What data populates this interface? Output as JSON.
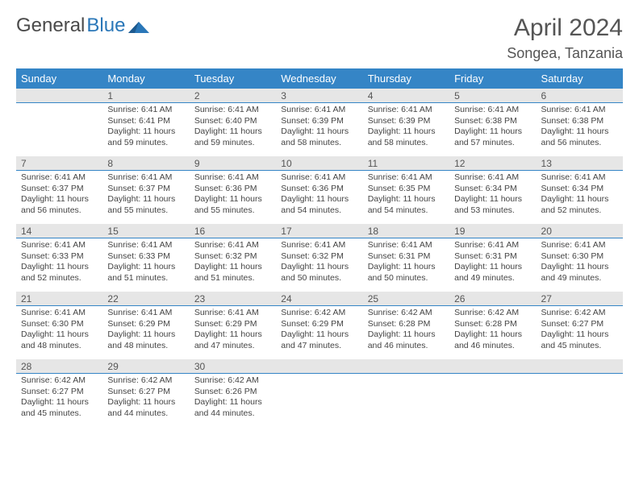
{
  "logo": {
    "text1": "General",
    "text2": "Blue"
  },
  "title": "April 2024",
  "location": "Songea, Tanzania",
  "colors": {
    "header_bg": "#3585c6",
    "header_text": "#ffffff",
    "daynum_bg": "#e6e6e6",
    "daynum_border": "#3585c6",
    "text": "#444444",
    "title_text": "#555555"
  },
  "weekdays": [
    "Sunday",
    "Monday",
    "Tuesday",
    "Wednesday",
    "Thursday",
    "Friday",
    "Saturday"
  ],
  "weeks": [
    [
      {
        "num": "",
        "lines": []
      },
      {
        "num": "1",
        "lines": [
          "Sunrise: 6:41 AM",
          "Sunset: 6:41 PM",
          "Daylight: 11 hours",
          "and 59 minutes."
        ]
      },
      {
        "num": "2",
        "lines": [
          "Sunrise: 6:41 AM",
          "Sunset: 6:40 PM",
          "Daylight: 11 hours",
          "and 59 minutes."
        ]
      },
      {
        "num": "3",
        "lines": [
          "Sunrise: 6:41 AM",
          "Sunset: 6:39 PM",
          "Daylight: 11 hours",
          "and 58 minutes."
        ]
      },
      {
        "num": "4",
        "lines": [
          "Sunrise: 6:41 AM",
          "Sunset: 6:39 PM",
          "Daylight: 11 hours",
          "and 58 minutes."
        ]
      },
      {
        "num": "5",
        "lines": [
          "Sunrise: 6:41 AM",
          "Sunset: 6:38 PM",
          "Daylight: 11 hours",
          "and 57 minutes."
        ]
      },
      {
        "num": "6",
        "lines": [
          "Sunrise: 6:41 AM",
          "Sunset: 6:38 PM",
          "Daylight: 11 hours",
          "and 56 minutes."
        ]
      }
    ],
    [
      {
        "num": "7",
        "lines": [
          "Sunrise: 6:41 AM",
          "Sunset: 6:37 PM",
          "Daylight: 11 hours",
          "and 56 minutes."
        ]
      },
      {
        "num": "8",
        "lines": [
          "Sunrise: 6:41 AM",
          "Sunset: 6:37 PM",
          "Daylight: 11 hours",
          "and 55 minutes."
        ]
      },
      {
        "num": "9",
        "lines": [
          "Sunrise: 6:41 AM",
          "Sunset: 6:36 PM",
          "Daylight: 11 hours",
          "and 55 minutes."
        ]
      },
      {
        "num": "10",
        "lines": [
          "Sunrise: 6:41 AM",
          "Sunset: 6:36 PM",
          "Daylight: 11 hours",
          "and 54 minutes."
        ]
      },
      {
        "num": "11",
        "lines": [
          "Sunrise: 6:41 AM",
          "Sunset: 6:35 PM",
          "Daylight: 11 hours",
          "and 54 minutes."
        ]
      },
      {
        "num": "12",
        "lines": [
          "Sunrise: 6:41 AM",
          "Sunset: 6:34 PM",
          "Daylight: 11 hours",
          "and 53 minutes."
        ]
      },
      {
        "num": "13",
        "lines": [
          "Sunrise: 6:41 AM",
          "Sunset: 6:34 PM",
          "Daylight: 11 hours",
          "and 52 minutes."
        ]
      }
    ],
    [
      {
        "num": "14",
        "lines": [
          "Sunrise: 6:41 AM",
          "Sunset: 6:33 PM",
          "Daylight: 11 hours",
          "and 52 minutes."
        ]
      },
      {
        "num": "15",
        "lines": [
          "Sunrise: 6:41 AM",
          "Sunset: 6:33 PM",
          "Daylight: 11 hours",
          "and 51 minutes."
        ]
      },
      {
        "num": "16",
        "lines": [
          "Sunrise: 6:41 AM",
          "Sunset: 6:32 PM",
          "Daylight: 11 hours",
          "and 51 minutes."
        ]
      },
      {
        "num": "17",
        "lines": [
          "Sunrise: 6:41 AM",
          "Sunset: 6:32 PM",
          "Daylight: 11 hours",
          "and 50 minutes."
        ]
      },
      {
        "num": "18",
        "lines": [
          "Sunrise: 6:41 AM",
          "Sunset: 6:31 PM",
          "Daylight: 11 hours",
          "and 50 minutes."
        ]
      },
      {
        "num": "19",
        "lines": [
          "Sunrise: 6:41 AM",
          "Sunset: 6:31 PM",
          "Daylight: 11 hours",
          "and 49 minutes."
        ]
      },
      {
        "num": "20",
        "lines": [
          "Sunrise: 6:41 AM",
          "Sunset: 6:30 PM",
          "Daylight: 11 hours",
          "and 49 minutes."
        ]
      }
    ],
    [
      {
        "num": "21",
        "lines": [
          "Sunrise: 6:41 AM",
          "Sunset: 6:30 PM",
          "Daylight: 11 hours",
          "and 48 minutes."
        ]
      },
      {
        "num": "22",
        "lines": [
          "Sunrise: 6:41 AM",
          "Sunset: 6:29 PM",
          "Daylight: 11 hours",
          "and 48 minutes."
        ]
      },
      {
        "num": "23",
        "lines": [
          "Sunrise: 6:41 AM",
          "Sunset: 6:29 PM",
          "Daylight: 11 hours",
          "and 47 minutes."
        ]
      },
      {
        "num": "24",
        "lines": [
          "Sunrise: 6:42 AM",
          "Sunset: 6:29 PM",
          "Daylight: 11 hours",
          "and 47 minutes."
        ]
      },
      {
        "num": "25",
        "lines": [
          "Sunrise: 6:42 AM",
          "Sunset: 6:28 PM",
          "Daylight: 11 hours",
          "and 46 minutes."
        ]
      },
      {
        "num": "26",
        "lines": [
          "Sunrise: 6:42 AM",
          "Sunset: 6:28 PM",
          "Daylight: 11 hours",
          "and 46 minutes."
        ]
      },
      {
        "num": "27",
        "lines": [
          "Sunrise: 6:42 AM",
          "Sunset: 6:27 PM",
          "Daylight: 11 hours",
          "and 45 minutes."
        ]
      }
    ],
    [
      {
        "num": "28",
        "lines": [
          "Sunrise: 6:42 AM",
          "Sunset: 6:27 PM",
          "Daylight: 11 hours",
          "and 45 minutes."
        ]
      },
      {
        "num": "29",
        "lines": [
          "Sunrise: 6:42 AM",
          "Sunset: 6:27 PM",
          "Daylight: 11 hours",
          "and 44 minutes."
        ]
      },
      {
        "num": "30",
        "lines": [
          "Sunrise: 6:42 AM",
          "Sunset: 6:26 PM",
          "Daylight: 11 hours",
          "and 44 minutes."
        ]
      },
      {
        "num": "",
        "lines": []
      },
      {
        "num": "",
        "lines": []
      },
      {
        "num": "",
        "lines": []
      },
      {
        "num": "",
        "lines": []
      }
    ]
  ]
}
